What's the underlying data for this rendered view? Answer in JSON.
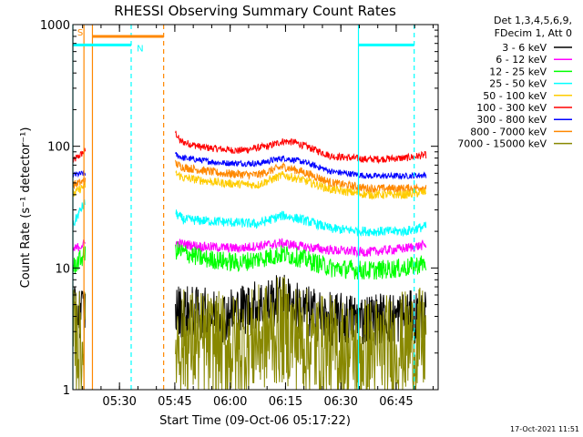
{
  "chart_data": {
    "type": "line",
    "title": "RHESSI Observing Summary Count Rates",
    "ylabel": "Count Rate (s⁻¹ detector⁻¹)",
    "xlabel": "Start Time (09-Oct-06 05:17:22)",
    "yscale": "log",
    "ylim": [
      1,
      1000
    ],
    "xlim_minutes": [
      0,
      99
    ],
    "ytick_labels": [
      "1",
      "10",
      "100",
      "1000"
    ],
    "ytick_values": [
      1,
      10,
      100,
      1000
    ],
    "xtick_labels": [
      "05:30",
      "05:45",
      "06:00",
      "06:15",
      "06:30",
      "06:45"
    ],
    "xtick_minutes": [
      12.63,
      27.63,
      42.63,
      57.63,
      72.63,
      87.63
    ],
    "legend_header": [
      "Det 1,3,4,5,6,9,",
      "FDecim 1, Att 0"
    ],
    "legend": [
      {
        "label": "3 - 6 keV",
        "color": "#000000"
      },
      {
        "label": "6 - 12 keV",
        "color": "#ff00ff"
      },
      {
        "label": "12 - 25 keV",
        "color": "#00ff00"
      },
      {
        "label": "25 - 50 keV",
        "color": "#00ffff"
      },
      {
        "label": "50 - 100 keV",
        "color": "#ffcc00"
      },
      {
        "label": "100 - 300 keV",
        "color": "#ff0000"
      },
      {
        "label": "300 - 800 keV",
        "color": "#0000ff"
      },
      {
        "label": "800 - 7000 keV",
        "color": "#ff8800"
      },
      {
        "label": "7000 - 15000 keV",
        "color": "#888800"
      }
    ],
    "segments_minutes": [
      [
        0,
        3.4
      ],
      [
        27.8,
        95.8
      ]
    ],
    "series": [
      {
        "name": "100 - 300 keV",
        "color": "#ff0000",
        "noise": 0.03,
        "early": [
          [
            0,
            75
          ],
          [
            3.4,
            92
          ]
        ],
        "main": [
          [
            27.8,
            130
          ],
          [
            29,
            110
          ],
          [
            35,
            98
          ],
          [
            45,
            92
          ],
          [
            53,
            100
          ],
          [
            57,
            110
          ],
          [
            60,
            108
          ],
          [
            65,
            95
          ],
          [
            70,
            83
          ],
          [
            80,
            78
          ],
          [
            90,
            80
          ],
          [
            95.8,
            85
          ]
        ]
      },
      {
        "name": "300 - 800 keV",
        "color": "#0000ff",
        "noise": 0.025,
        "early": [
          [
            0,
            58
          ],
          [
            3.4,
            60
          ]
        ],
        "main": [
          [
            27.8,
            85
          ],
          [
            30,
            80
          ],
          [
            40,
            73
          ],
          [
            50,
            72
          ],
          [
            57,
            80
          ],
          [
            62,
            75
          ],
          [
            70,
            62
          ],
          [
            80,
            57
          ],
          [
            90,
            57
          ],
          [
            95.8,
            58
          ]
        ]
      },
      {
        "name": "800 - 7000 keV",
        "color": "#ff8800",
        "noise": 0.035,
        "early": [
          [
            0,
            48
          ],
          [
            3.4,
            52
          ]
        ],
        "main": [
          [
            27.8,
            72
          ],
          [
            30,
            67
          ],
          [
            40,
            60
          ],
          [
            50,
            58
          ],
          [
            57,
            68
          ],
          [
            62,
            62
          ],
          [
            70,
            50
          ],
          [
            80,
            45
          ],
          [
            90,
            45
          ],
          [
            95.8,
            46
          ]
        ]
      },
      {
        "name": "50 - 100 keV",
        "color": "#ffcc00",
        "noise": 0.035,
        "early": [
          [
            0,
            40
          ],
          [
            3.4,
            48
          ]
        ],
        "main": [
          [
            27.8,
            60
          ],
          [
            30,
            55
          ],
          [
            40,
            50
          ],
          [
            50,
            48
          ],
          [
            57,
            58
          ],
          [
            62,
            53
          ],
          [
            70,
            44
          ],
          [
            80,
            40
          ],
          [
            90,
            40
          ],
          [
            95.8,
            42
          ]
        ]
      },
      {
        "name": "25 - 50 keV",
        "color": "#00ffff",
        "noise": 0.04,
        "early": [
          [
            0,
            22
          ],
          [
            3.4,
            35
          ]
        ],
        "main": [
          [
            27.8,
            28
          ],
          [
            30,
            25
          ],
          [
            40,
            24
          ],
          [
            50,
            23
          ],
          [
            57,
            27
          ],
          [
            62,
            25
          ],
          [
            70,
            21
          ],
          [
            80,
            20
          ],
          [
            90,
            20
          ],
          [
            95.8,
            22
          ]
        ]
      },
      {
        "name": "6 - 12 keV",
        "color": "#ff00ff",
        "noise": 0.04,
        "early": [
          [
            0,
            14
          ],
          [
            3.4,
            16
          ]
        ],
        "main": [
          [
            27.8,
            16
          ],
          [
            35,
            15
          ],
          [
            45,
            14.5
          ],
          [
            57,
            16
          ],
          [
            62,
            15
          ],
          [
            70,
            14
          ],
          [
            80,
            13.5
          ],
          [
            90,
            14.5
          ],
          [
            95.8,
            15.5
          ]
        ]
      },
      {
        "name": "12 - 25 keV",
        "color": "#00ff00",
        "noise": 0.08,
        "early": [
          [
            0,
            10
          ],
          [
            3.4,
            13
          ]
        ],
        "main": [
          [
            27.8,
            14
          ],
          [
            35,
            12
          ],
          [
            45,
            11
          ],
          [
            57,
            13
          ],
          [
            62,
            12
          ],
          [
            70,
            10
          ],
          [
            80,
            9.5
          ],
          [
            90,
            10
          ],
          [
            95.8,
            11
          ]
        ]
      },
      {
        "name": "3 - 6 keV",
        "color": "#000000",
        "noise": 0.22,
        "early": [
          [
            0,
            4.2
          ],
          [
            3.4,
            4.5
          ]
        ],
        "main": [
          [
            27.8,
            4.5
          ],
          [
            40,
            4
          ],
          [
            57,
            5.5
          ],
          [
            62,
            4.5
          ],
          [
            70,
            3.8
          ],
          [
            80,
            3.8
          ],
          [
            95.8,
            4
          ]
        ]
      },
      {
        "name": "7000 - 15000 keV",
        "color": "#888800",
        "noise": 0.45,
        "early": [
          [
            0,
            2.4
          ],
          [
            3.4,
            2.4
          ]
        ],
        "main": [
          [
            27.8,
            2.5
          ],
          [
            45,
            2.2
          ],
          [
            57,
            3.1
          ],
          [
            65,
            2.3
          ],
          [
            75,
            2
          ],
          [
            85,
            2.2
          ],
          [
            95.8,
            2.5
          ]
        ]
      }
    ],
    "markers": [
      {
        "minute": 0,
        "color": "#00ffff",
        "style": "solid"
      },
      {
        "minute": 3.0,
        "color": "#ff8800",
        "style": "solid"
      },
      {
        "minute": 5.3,
        "color": "#ff8800",
        "style": "solid"
      },
      {
        "minute": 15.8,
        "color": "#00ffff",
        "style": "dashed"
      },
      {
        "minute": 24.6,
        "color": "#ff8800",
        "style": "dashed"
      },
      {
        "minute": 77.4,
        "color": "#00ffff",
        "style": "solid"
      },
      {
        "minute": 92.5,
        "color": "#00ffff",
        "style": "dashed"
      }
    ],
    "top_bars": [
      {
        "from": 0,
        "to": 15.8,
        "value": 680,
        "color": "#00ffff",
        "label": "N",
        "label_at": 17.3
      },
      {
        "from": 5.3,
        "to": 24.6,
        "value": 800,
        "color": "#ff8800",
        "label": "S",
        "label_at": 1.2
      },
      {
        "from": 77.4,
        "to": 92.5,
        "value": 680,
        "color": "#00ffff"
      }
    ]
  },
  "footer": {
    "timestamp": "17-Oct-2021 11:51"
  }
}
